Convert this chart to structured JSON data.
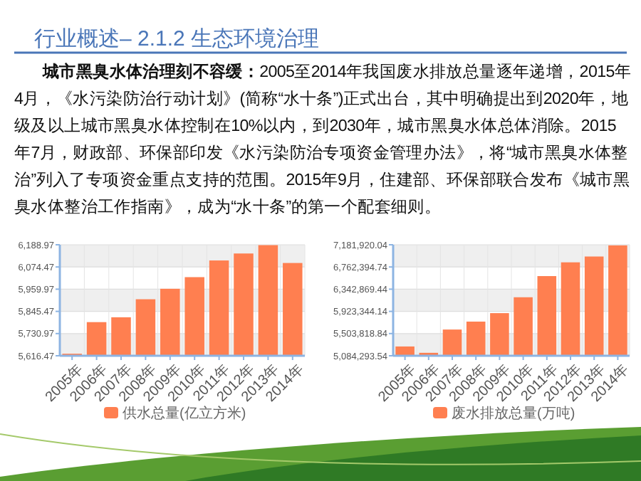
{
  "chart_data": [
    {
      "type": "bar",
      "title": "行业概述– 2.1.2 生态环境治理",
      "annotations": [
        "城市黑臭水体治理刻不容缓：",
        "2005至2014年我国废水排放总量逐年递增，2015年4月，《水污染防治行动计划》(简称“水十条”)正式出台，其中明确提出到2020年，地级及以上城市黑臭水体控制在10%以内，到2030年，城市黑臭水体总体消除。2015年7月，财政部、环保部印发《水污染防治专项资金管理办法》，将“城市黑臭水体整治”列入了专项资金重点支持的范围。2015年9月，住建部、环保部联合发布《城市黑臭水体整治工作指南》，成为“水十条”的第一个配套细则。"
      ],
      "categories": [
        "2005年",
        "2006年",
        "2007年",
        "2008年",
        "2009年",
        "2010年",
        "2011年",
        "2012年",
        "2013年",
        "2014年"
      ],
      "series": [
        {
          "name": "供水总量(亿立方米)",
          "color": "#ff7f50",
          "values": [
            5627,
            5790,
            5815,
            5908,
            5962,
            6022,
            6108,
            6144,
            6187,
            6095
          ]
        }
      ],
      "ylim": [
        5616.47,
        6188.97
      ],
      "yticks": [
        {
          "value": 5616.47,
          "label": "5,616.47"
        },
        {
          "value": 5730.97,
          "label": "5,730.97"
        },
        {
          "value": 5845.47,
          "label": "5,845.47"
        },
        {
          "value": 5959.97,
          "label": "5,959.97"
        },
        {
          "value": 6074.47,
          "label": "6,074.47"
        },
        {
          "value": 6188.97,
          "label": "6,188.97"
        }
      ],
      "grid": true,
      "legend": "bottom"
    },
    {
      "type": "bar",
      "categories": [
        "2005年",
        "2006年",
        "2007年",
        "2008年",
        "2009年",
        "2010年",
        "2011年",
        "2012年",
        "2013年",
        "2014年"
      ],
      "series": [
        {
          "name": "废水排放总量(万吨)",
          "color": "#ff7f50",
          "values": [
            5260000,
            5140000,
            5580000,
            5730000,
            5890000,
            6190000,
            6590000,
            6850000,
            6960000,
            7170000
          ]
        }
      ],
      "ylim": [
        5084293.54,
        7181920.04
      ],
      "yticks": [
        {
          "value": 5084293.54,
          "label": "5,084,293.54"
        },
        {
          "value": 5503818.84,
          "label": "5,503,818.84"
        },
        {
          "value": 5923344.14,
          "label": "5,923,344.14"
        },
        {
          "value": 6342869.44,
          "label": "6,342,869.44"
        },
        {
          "value": 6762394.74,
          "label": "6,762,394.74"
        },
        {
          "value": 7181920.04,
          "label": "7,181,920.04"
        }
      ],
      "grid": true,
      "legend": "bottom"
    }
  ]
}
